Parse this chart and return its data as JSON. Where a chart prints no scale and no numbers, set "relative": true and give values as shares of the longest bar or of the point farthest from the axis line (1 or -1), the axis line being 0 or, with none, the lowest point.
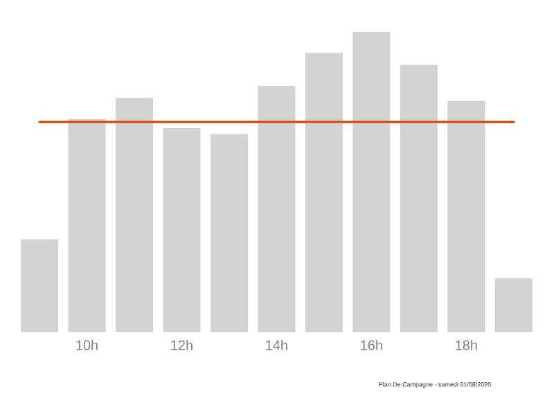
{
  "chart_data": {
    "type": "bar",
    "relative": true,
    "color": "#d3d3d3",
    "categories": [
      null,
      "10h",
      null,
      "12h",
      null,
      "14h",
      null,
      "16h",
      null,
      "18h",
      null
    ],
    "values": [
      0.31,
      0.71,
      0.78,
      0.68,
      0.66,
      0.82,
      0.93,
      1,
      0.89,
      0.77,
      0.18
    ],
    "ref_lines": [
      {
        "axis": "y",
        "value": 0.7,
        "color": "#d2541a"
      }
    ],
    "annotations": [
      "Plan De Campagne - samedi 01/08/2020"
    ]
  }
}
